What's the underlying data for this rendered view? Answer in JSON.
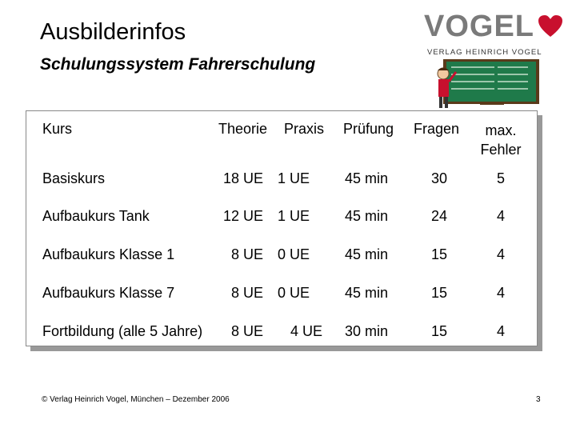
{
  "title": "Ausbilderinfos",
  "subtitle": "Schulungssystem Fahrerschulung",
  "logo": {
    "word": "VOGEL",
    "tagline": "VERLAG HEINRICH VOGEL",
    "brand_color": "#c8102e",
    "icon": "heart-icon"
  },
  "illustration": {
    "icon": "teacher-at-chalkboard-icon",
    "board_color": "#1f7a4a"
  },
  "table": {
    "headers": [
      "Kurs",
      "Theorie",
      "Praxis",
      "Prüfung",
      "Fragen",
      "max. Fehler"
    ],
    "rows": [
      [
        "Basiskurs",
        "18 UE",
        "1 UE",
        "45 min",
        "30",
        "5"
      ],
      [
        "Aufbaukurs Tank",
        "12 UE",
        "1 UE",
        "45 min",
        "24",
        "4"
      ],
      [
        "Aufbaukurs Klasse 1",
        "8 UE",
        "0 UE",
        "45 min",
        "15",
        "4"
      ],
      [
        "Aufbaukurs Klasse 7",
        "8 UE",
        "0 UE",
        "45 min",
        "15",
        "4"
      ],
      [
        "Fortbildung (alle 5 Jahre)",
        "8 UE",
        "4 UE",
        "30 min",
        "15",
        "4"
      ]
    ]
  },
  "footer": "© Verlag Heinrich Vogel, München – Dezember 2006",
  "page_number": "3"
}
